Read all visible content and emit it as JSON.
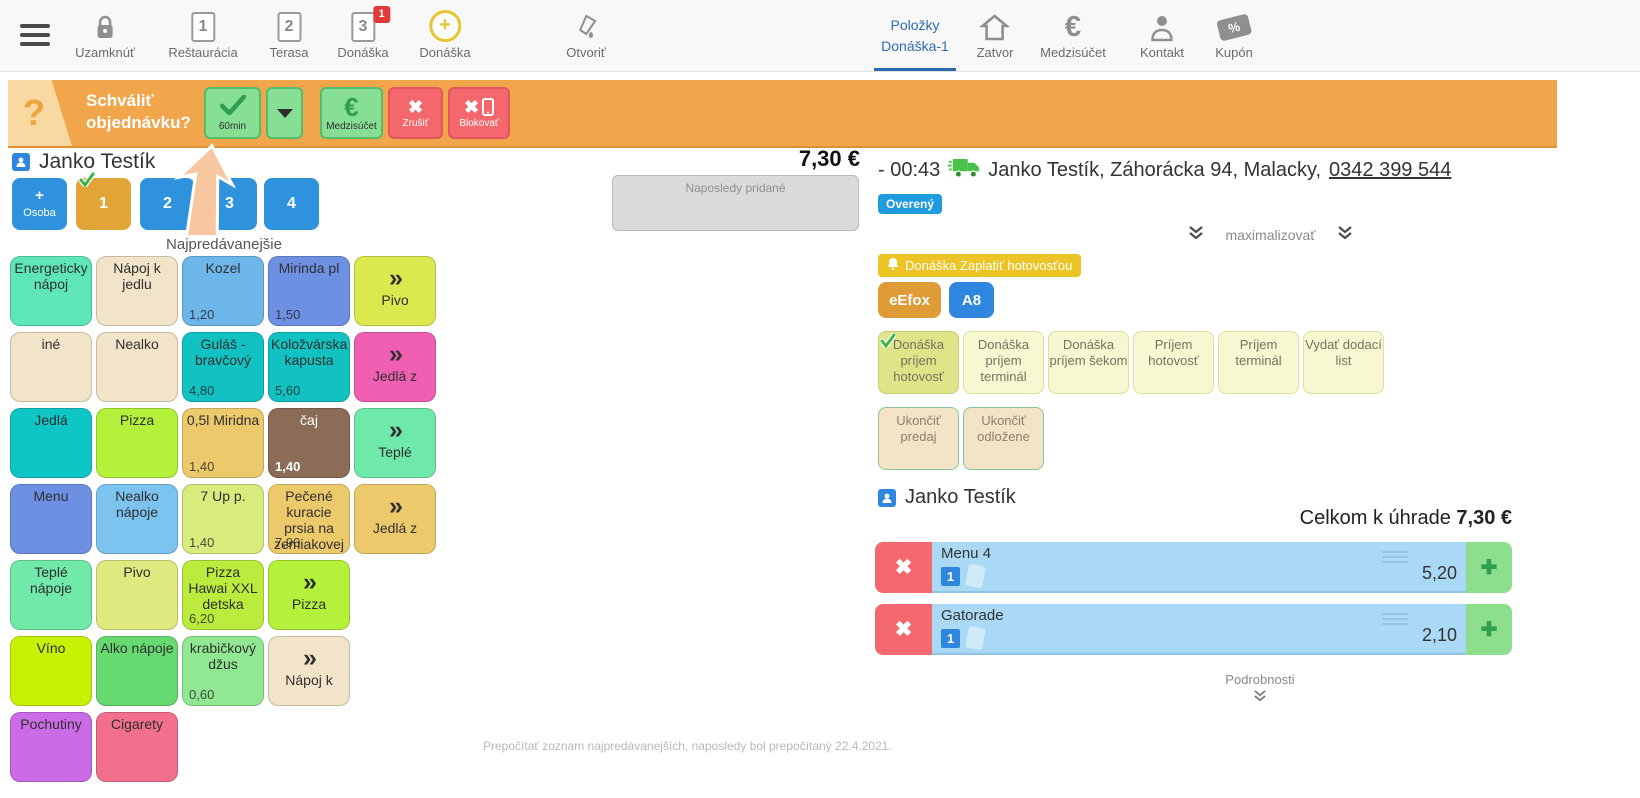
{
  "colors": {
    "banner_orange": "#F1A64C",
    "approve_green": "#87DF96",
    "danger_red": "#F4686D",
    "accent_blue": "#2E86DE",
    "seat_selected_orange": "#E1A437",
    "verified_blue": "#1F9BE0",
    "badge_gold": "#EDC426",
    "fiscal_orange": "#DF9B35",
    "item_row_blue": "#A9D9F4",
    "add_green": "#8DDE8D",
    "tab_blue": "#2B6CB0"
  },
  "topbar": {
    "left_items": [
      {
        "name": "uzamknut",
        "icon": "lock-icon",
        "label": "Uzamknúť"
      },
      {
        "name": "restauracia",
        "icon": "numbered-square-icon",
        "num": "1",
        "label": "Reštaurácia"
      },
      {
        "name": "terasa",
        "icon": "numbered-square-icon",
        "num": "2",
        "label": "Terasa"
      },
      {
        "name": "donaska-3",
        "icon": "numbered-square-icon",
        "num": "3",
        "label": "Donáška",
        "badge": "1"
      },
      {
        "name": "donaska-plus",
        "icon": "plus-circle-icon",
        "label": "Donáška"
      },
      {
        "name": "otvorit",
        "icon": "marker-icon",
        "label": "Otvoriť"
      }
    ],
    "tab": {
      "line1": "Položky",
      "line2": "Donáška-1"
    },
    "right_items": [
      {
        "name": "zatvor",
        "icon": "home-icon",
        "label": "Zatvor"
      },
      {
        "name": "medzisucet",
        "icon": "euro-icon",
        "label": "Medzisúčet"
      },
      {
        "name": "kontakt",
        "icon": "person-icon",
        "label": "Kontakt"
      },
      {
        "name": "kupon",
        "icon": "coupon-icon",
        "label": "Kupón"
      }
    ]
  },
  "banner": {
    "qmark": "?",
    "question_line1": "Schváliť",
    "question_line2": "objednávku?",
    "approve": "60min",
    "subtotal": "Medzisúčet",
    "cancel": "Zrušiť",
    "block": "Blokovať"
  },
  "left": {
    "customer": "Janko Testík",
    "seats": [
      {
        "plus": "+",
        "label": "Osoba"
      },
      {
        "label": "1",
        "selected": true
      },
      {
        "label": "2"
      },
      {
        "label": "3"
      },
      {
        "label": "4"
      }
    ],
    "grid_title": "Najpredávanejšie",
    "footer_note": "Prepočítať zoznam najpredávanejších, naposledy bol prepočítaný 22.4.2021."
  },
  "products": [
    [
      {
        "label": "Energeticky nápoj",
        "bg": "#5FE6B8"
      },
      {
        "label": "Nápoj k jedlu",
        "bg": "#F1E4C8"
      },
      {
        "label": "Kozel",
        "price": "1,20",
        "bg": "#6DB6EA"
      },
      {
        "label": "Mirinda pl",
        "price": "1,50",
        "bg": "#6D90E2"
      },
      {
        "chevron": true,
        "label": "Pivo",
        "bg": "#DCE94E"
      }
    ],
    [
      {
        "label": "iné",
        "bg": "#F1E4C8"
      },
      {
        "label": "Nealko",
        "bg": "#F1E4C8"
      },
      {
        "label": "Guláš - bravčový",
        "price": "4,80",
        "bg": "#12C2C2"
      },
      {
        "label": "Koložvárska kapusta",
        "price": "5,60",
        "bg": "#12C2C2"
      },
      {
        "chevron": true,
        "label": "Jedlá z",
        "bg": "#F05FB2"
      }
    ],
    [
      {
        "label": "Jedlá",
        "bg": "#0FC6C6"
      },
      {
        "label": "Pizza",
        "bg": "#B4F13B"
      },
      {
        "label": "0,5l Miridna",
        "price": "1,40",
        "bg": "#ECCA6C"
      },
      {
        "label": "čaj",
        "price": "1,40",
        "bg": "#8A6C57",
        "fg": "#fff"
      },
      {
        "chevron": true,
        "label": "Teplé",
        "bg": "#6FE9A9"
      }
    ],
    [
      {
        "label": "Menu",
        "bg": "#6D90E2"
      },
      {
        "label": "Nealko nápoje",
        "bg": "#7CC3EF"
      },
      {
        "label": "7 Up p.",
        "price": "1,40",
        "bg": "#D7EC7D"
      },
      {
        "label": "Pečené kuracie prsia na zemiakovej",
        "price": "7,90",
        "bg": "#ECCA6C"
      },
      {
        "chevron": true,
        "label": "Jedlá z",
        "bg": "#ECCA6C"
      }
    ],
    [
      {
        "label": "Teplé nápoje",
        "bg": "#70E9A9"
      },
      {
        "label": "Pivo",
        "bg": "#DEE97F"
      },
      {
        "label": "Pizza Hawai XXL detska",
        "price": "6,20",
        "bg": "#BBEC3D"
      },
      {
        "chevron": true,
        "label": "Pizza",
        "bg": "#B4F13B"
      },
      null
    ],
    [
      {
        "label": "Víno",
        "bg": "#C6F203"
      },
      {
        "label": "Alko nápoje",
        "bg": "#66DA70"
      },
      {
        "label": "krabičkový džus",
        "price": "0,60",
        "bg": "#90E992"
      },
      {
        "chevron": true,
        "label": "Nápoj k",
        "bg": "#F1E4C8"
      },
      null
    ],
    [
      {
        "label": "Pochutiny",
        "bg": "#CB6CE6"
      },
      {
        "label": "Cigarety",
        "bg": "#F2708C"
      },
      null,
      null,
      null
    ]
  ],
  "center": {
    "amount": "7,30 €",
    "last_added": "Naposledy pridané"
  },
  "delivery": {
    "time": "- 00:43",
    "customer": "Janko Testík, Záhorácka 94, Malacky,",
    "phone": "0342 399 544",
    "verified": "Overený",
    "maximize": "maximalizovať",
    "status_badge": "Donáška Zaplatiť hotovosťou",
    "fiscal": "eEfox",
    "table": "A8"
  },
  "payments": {
    "row1": [
      {
        "label": "Donáška príjem hotovosť",
        "active": true
      },
      {
        "label": "Donáška príjem terminál"
      },
      {
        "label": "Donáška príjem šekom"
      },
      {
        "label": "Príjem hotovosť"
      },
      {
        "label": "Príjem terminál"
      },
      {
        "label": "Vydať dodací list"
      }
    ],
    "row2": [
      {
        "label": "Ukončiť predaj"
      },
      {
        "label": "Ukončiť odložene"
      }
    ]
  },
  "order": {
    "customer": "Janko Testík",
    "total_label": "Celkom k úhrade",
    "total": "7,30 €",
    "items": [
      {
        "name": "Menu 4",
        "qty": "1",
        "price": "5,20"
      },
      {
        "name": "Gatorade",
        "qty": "1",
        "price": "2,10"
      }
    ],
    "details_label": "Podrobnosti"
  }
}
